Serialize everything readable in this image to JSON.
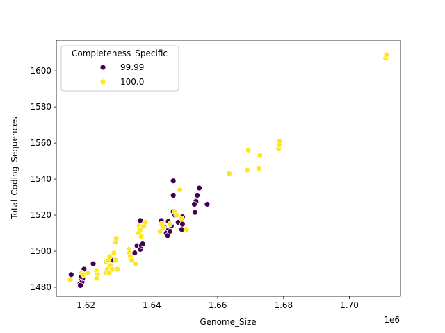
{
  "chart_data": {
    "type": "scatter",
    "xlabel": "Genome_Size",
    "ylabel": "Total_Coding_Sequences",
    "x_offset_label": "1e6",
    "xlim": [
      1.611,
      1.7155
    ],
    "ylim": [
      1475,
      1617
    ],
    "x_ticks": [
      1.62,
      1.64,
      1.66,
      1.68,
      1.7
    ],
    "x_tick_labels": [
      "1.62",
      "1.64",
      "1.66",
      "1.68",
      "1.70"
    ],
    "y_ticks": [
      1480,
      1500,
      1520,
      1540,
      1560,
      1580,
      1600
    ],
    "y_tick_labels": [
      "1480",
      "1500",
      "1520",
      "1540",
      "1560",
      "1580",
      "1600"
    ],
    "grid": false,
    "legend": {
      "title": "Completeness_Specific",
      "placement": "top-left"
    },
    "series": [
      {
        "name": "99.99",
        "color": "#440154",
        "points": [
          [
            1.6155,
            1487
          ],
          [
            1.6182,
            1482
          ],
          [
            1.6185,
            1484
          ],
          [
            1.6188,
            1483
          ],
          [
            1.6183,
            1481
          ],
          [
            1.619,
            1485
          ],
          [
            1.6186,
            1486
          ],
          [
            1.6192,
            1488
          ],
          [
            1.6194,
            1490
          ],
          [
            1.6222,
            1493
          ],
          [
            1.6283,
            1495
          ],
          [
            1.6348,
            1499
          ],
          [
            1.6355,
            1503
          ],
          [
            1.6365,
            1501
          ],
          [
            1.6368,
            1503
          ],
          [
            1.6372,
            1504
          ],
          [
            1.6365,
            1517
          ],
          [
            1.6465,
            1539
          ],
          [
            1.6465,
            1531
          ],
          [
            1.6544,
            1535
          ],
          [
            1.6538,
            1531
          ],
          [
            1.6534,
            1528
          ],
          [
            1.6534,
            1527.5
          ],
          [
            1.6529,
            1526
          ],
          [
            1.6531,
            1521.5
          ],
          [
            1.6568,
            1526
          ],
          [
            1.6429,
            1517
          ],
          [
            1.6465,
            1522
          ],
          [
            1.647,
            1520
          ],
          [
            1.6493,
            1519
          ],
          [
            1.648,
            1516
          ],
          [
            1.6493,
            1515
          ],
          [
            1.6491,
            1512
          ],
          [
            1.645,
            1516.5
          ],
          [
            1.6459,
            1514
          ],
          [
            1.645,
            1511.6
          ],
          [
            1.6444,
            1510
          ],
          [
            1.6448,
            1508.6
          ],
          [
            1.6455,
            1511
          ],
          [
            1.6437,
            1513.5
          ]
        ]
      },
      {
        "name": "100.0",
        "color": "#fde725",
        "points": [
          [
            1.6152,
            1484
          ],
          [
            1.6187,
            1488
          ],
          [
            1.6192,
            1487
          ],
          [
            1.6205,
            1488
          ],
          [
            1.6232,
            1489
          ],
          [
            1.6235,
            1487
          ],
          [
            1.6232,
            1485
          ],
          [
            1.626,
            1488
          ],
          [
            1.6265,
            1490
          ],
          [
            1.627,
            1488
          ],
          [
            1.6275,
            1492
          ],
          [
            1.628,
            1490
          ],
          [
            1.6262,
            1494
          ],
          [
            1.6268,
            1495
          ],
          [
            1.6272,
            1497
          ],
          [
            1.6285,
            1499
          ],
          [
            1.629,
            1495
          ],
          [
            1.6295,
            1490
          ],
          [
            1.629,
            1505
          ],
          [
            1.6292,
            1507
          ],
          [
            1.633,
            1501
          ],
          [
            1.6332,
            1499
          ],
          [
            1.6335,
            1497
          ],
          [
            1.6338,
            1495
          ],
          [
            1.635,
            1493
          ],
          [
            1.636,
            1510
          ],
          [
            1.6362,
            1514
          ],
          [
            1.6365,
            1512
          ],
          [
            1.6368,
            1508
          ],
          [
            1.6375,
            1514
          ],
          [
            1.638,
            1516
          ],
          [
            1.6425,
            1511
          ],
          [
            1.643,
            1515
          ],
          [
            1.6435,
            1513
          ],
          [
            1.6455,
            1515
          ],
          [
            1.647,
            1522
          ],
          [
            1.6475,
            1520
          ],
          [
            1.6485,
            1534
          ],
          [
            1.649,
            1518
          ],
          [
            1.6505,
            1512
          ],
          [
            1.6635,
            1543
          ],
          [
            1.669,
            1545
          ],
          [
            1.6693,
            1556
          ],
          [
            1.6725,
            1546
          ],
          [
            1.6728,
            1553
          ],
          [
            1.6785,
            1557
          ],
          [
            1.6787,
            1559
          ],
          [
            1.6788,
            1561
          ],
          [
            1.711,
            1607
          ],
          [
            1.7113,
            1609
          ]
        ]
      }
    ]
  }
}
